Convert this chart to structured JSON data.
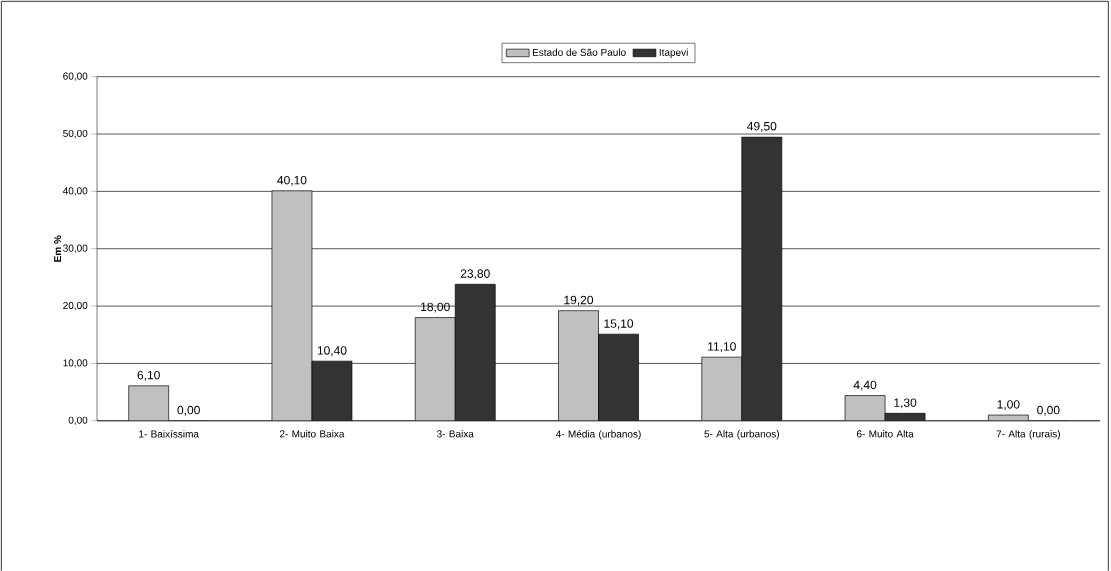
{
  "chart_data": {
    "type": "bar",
    "ylabel": "Em %",
    "categories": [
      "1- Baixíssima",
      "2- Muito Baixa",
      "3- Baixa",
      "4- Média (urbanos)",
      "5- Alta (urbanos)",
      "6- Muito Alta",
      "7- Alta (rurais)"
    ],
    "series": [
      {
        "name": "Estado de São Paulo",
        "color": "#c0c0c0",
        "values": [
          6.1,
          40.1,
          18.0,
          19.2,
          11.1,
          4.4,
          1.0
        ],
        "value_labels": [
          "6,10",
          "40,10",
          "18,00",
          "19,20",
          "11,10",
          "4,40",
          "1,00"
        ]
      },
      {
        "name": "Itapevi",
        "color": "#333333",
        "values": [
          0.0,
          10.4,
          23.8,
          15.1,
          49.5,
          1.3,
          0.0
        ],
        "value_labels": [
          "0,00",
          "10,40",
          "23,80",
          "15,10",
          "49,50",
          "1,30",
          "0,00"
        ]
      }
    ],
    "ylim": [
      0,
      60
    ],
    "yticks": [
      {
        "value": 0,
        "label": "0,00"
      },
      {
        "value": 10,
        "label": "10,00"
      },
      {
        "value": 20,
        "label": "20,00"
      },
      {
        "value": 30,
        "label": "30,00"
      },
      {
        "value": 40,
        "label": "40,00"
      },
      {
        "value": 50,
        "label": "50,00"
      },
      {
        "value": 60,
        "label": "60,00"
      }
    ],
    "grid": "y",
    "legend": "top"
  }
}
